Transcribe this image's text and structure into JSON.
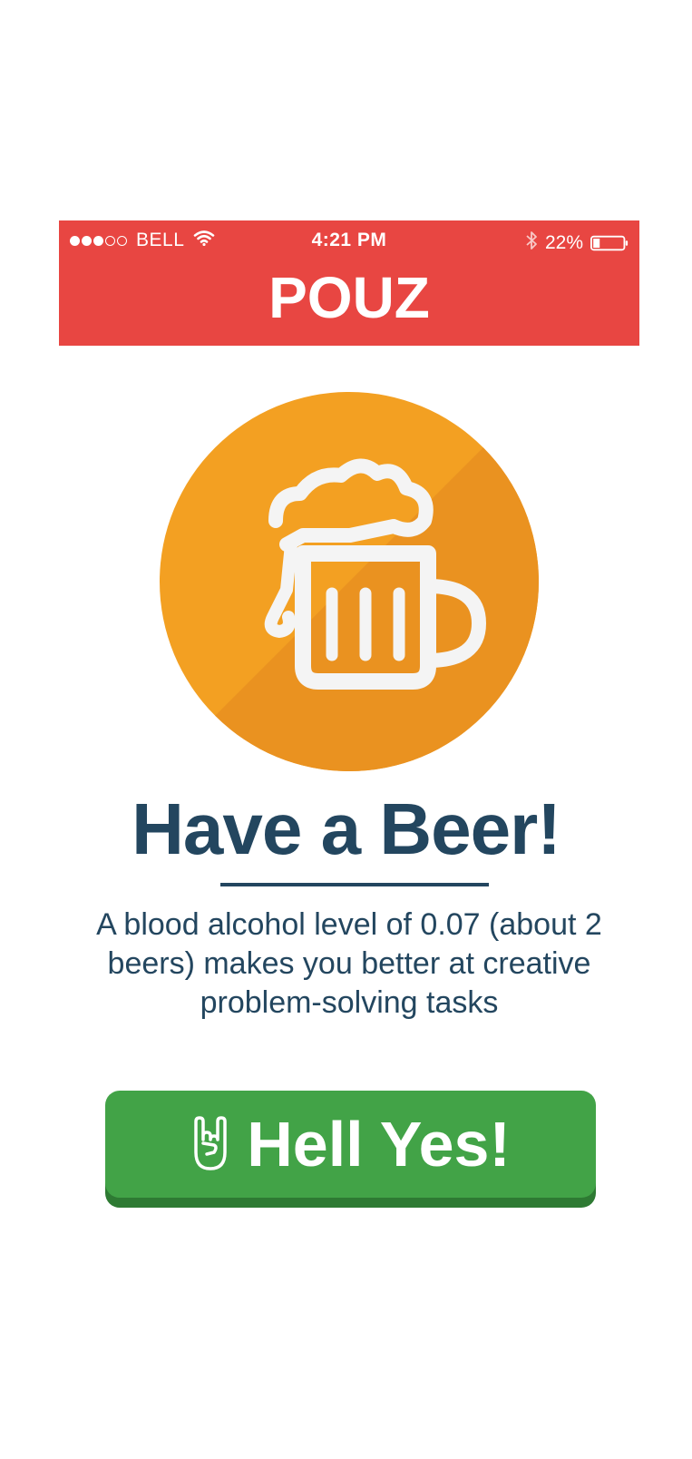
{
  "status_bar": {
    "carrier": "BELL",
    "time": "4:21 PM",
    "battery": "22%",
    "battery_level": 0.22,
    "signal_strength": 3,
    "signal_max": 5,
    "icons": [
      "wifi-icon",
      "bluetooth-icon",
      "battery-icon"
    ]
  },
  "app": {
    "brand": "POUZ",
    "brand_color": "#E84642",
    "accent_color": "#23465F"
  },
  "content": {
    "illustration": "beer-mug-icon",
    "headline": "Have a Beer!",
    "fact": "A blood alcohol level of 0.07 (about 2 beers) makes you better at creative problem-solving tasks"
  },
  "cta": {
    "label": "Hell Yes!",
    "icon": "rock-on-hand-icon",
    "color": "#42A347"
  }
}
